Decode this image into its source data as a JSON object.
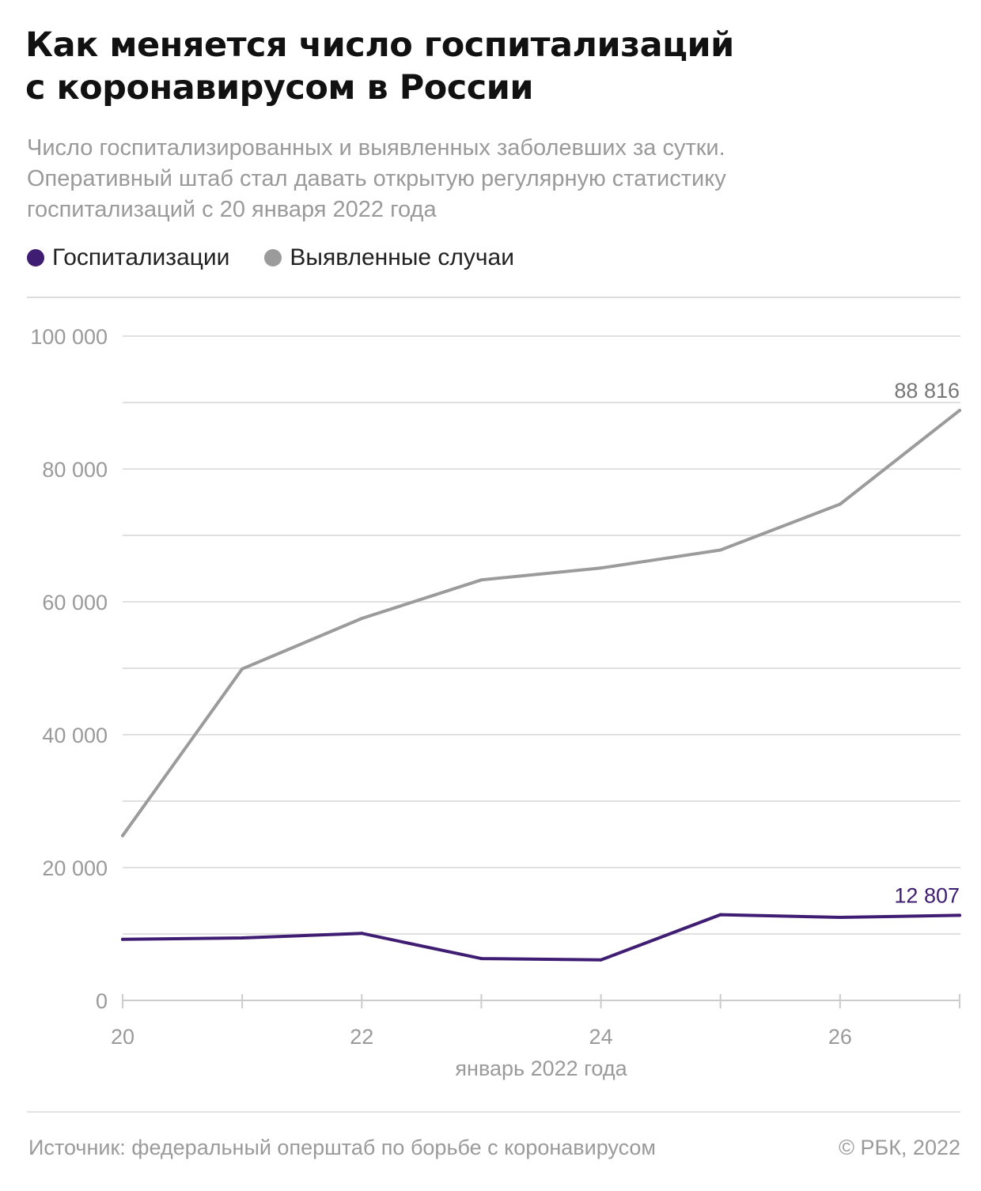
{
  "title_line1": "Как меняется число госпитализаций",
  "title_line2": "с коронавирусом в России",
  "subtitle_lines": [
    "Число госпитализированных и выявленных заболевших за сутки.",
    "Оперативный штаб стал давать открытую регулярную статистику",
    "госпитализаций с 20 января 2022 года"
  ],
  "colors": {
    "hospitalizations": "#3f1d72",
    "cases": "#9b9b9b"
  },
  "chart_data": {
    "type": "line",
    "title": "Как меняется число госпитализаций с коронавирусом в России",
    "xlabel": "январь 2022 года",
    "ylabel": "",
    "x": [
      "2022-01-20",
      "2022-01-21",
      "2022-01-22",
      "2022-01-23",
      "2022-01-24",
      "2022-01-25",
      "2022-01-26",
      "2022-01-27"
    ],
    "x_tick_labels": [
      "20",
      "22",
      "24",
      "26"
    ],
    "y_tick_labels": [
      "0",
      "20 000",
      "40 000",
      "60 000",
      "80 000",
      "100 000"
    ],
    "ylim": [
      0,
      100000
    ],
    "y_ticks": [
      0,
      20000,
      40000,
      60000,
      80000,
      100000
    ],
    "grid": true,
    "legend": "top-left",
    "series": [
      {
        "name": "Госпитализации",
        "color": "#3f1d72",
        "values": [
          9200,
          9400,
          10100,
          6300,
          6100,
          12900,
          12500,
          12807
        ],
        "end_label": "12 807"
      },
      {
        "name": "Выявленные случаи",
        "color": "#9b9b9b",
        "values": [
          24800,
          49900,
          57500,
          63300,
          65100,
          67800,
          74700,
          88816
        ],
        "end_label": "88 816"
      }
    ]
  },
  "source": "Источник: федеральный оперштаб по борьбе с коронавирусом",
  "copyright": "© РБК, 2022"
}
